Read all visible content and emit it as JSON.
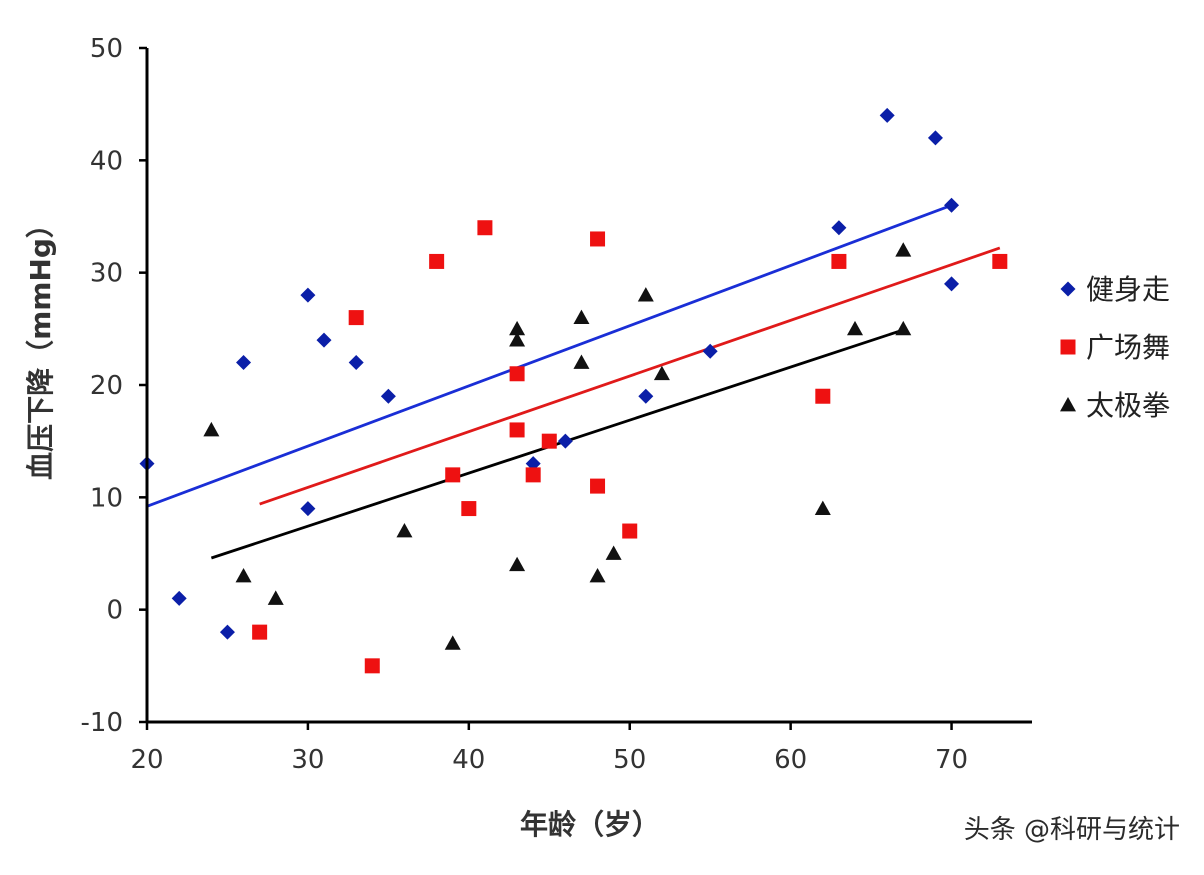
{
  "chart_data": {
    "type": "scatter",
    "xlabel": "年龄（岁）",
    "ylabel": "血压下降（mmHg）",
    "xlim": [
      20,
      75
    ],
    "ylim": [
      -10,
      50
    ],
    "x_ticks": [
      20,
      30,
      40,
      50,
      60,
      70
    ],
    "y_ticks": [
      -10,
      0,
      10,
      20,
      30,
      40,
      50
    ],
    "grid": false,
    "legend_position": "right",
    "series": [
      {
        "name": "健身走",
        "marker": "diamond",
        "color": "#0b1fa8",
        "points": [
          [
            20,
            13
          ],
          [
            22,
            1
          ],
          [
            25,
            -2
          ],
          [
            26,
            22
          ],
          [
            30,
            28
          ],
          [
            30,
            9
          ],
          [
            31,
            24
          ],
          [
            33,
            22
          ],
          [
            35,
            19
          ],
          [
            44,
            13
          ],
          [
            46,
            15
          ],
          [
            51,
            19
          ],
          [
            55,
            23
          ],
          [
            63,
            34
          ],
          [
            66,
            44
          ],
          [
            69,
            42
          ],
          [
            70,
            36
          ],
          [
            70,
            29
          ]
        ],
        "trend": {
          "x": [
            20,
            70
          ],
          "y": [
            9.2,
            36.0
          ]
        },
        "trend_color": "#1a2ed6"
      },
      {
        "name": "广场舞",
        "marker": "square",
        "color": "#ee1111",
        "points": [
          [
            27,
            -2
          ],
          [
            33,
            26
          ],
          [
            34,
            -5
          ],
          [
            38,
            31
          ],
          [
            39,
            12
          ],
          [
            40,
            9
          ],
          [
            41,
            34
          ],
          [
            43,
            21
          ],
          [
            43,
            16
          ],
          [
            44,
            12
          ],
          [
            45,
            15
          ],
          [
            48,
            33
          ],
          [
            48,
            11
          ],
          [
            50,
            7
          ],
          [
            62,
            19
          ],
          [
            63,
            31
          ],
          [
            73,
            31
          ]
        ],
        "trend": {
          "x": [
            27,
            73
          ],
          "y": [
            9.4,
            32.2
          ]
        },
        "trend_color": "#e01a1a"
      },
      {
        "name": "太极拳",
        "marker": "triangle",
        "color": "#111111",
        "points": [
          [
            24,
            16
          ],
          [
            26,
            3
          ],
          [
            28,
            1
          ],
          [
            36,
            7
          ],
          [
            39,
            -3
          ],
          [
            43,
            25
          ],
          [
            43,
            24
          ],
          [
            43,
            4
          ],
          [
            47,
            26
          ],
          [
            47,
            22
          ],
          [
            48,
            3
          ],
          [
            49,
            5
          ],
          [
            51,
            28
          ],
          [
            52,
            21
          ],
          [
            62,
            9
          ],
          [
            64,
            25
          ],
          [
            67,
            32
          ],
          [
            67,
            25
          ]
        ],
        "trend": {
          "x": [
            24,
            67
          ],
          "y": [
            4.6,
            24.9
          ]
        },
        "trend_color": "#000000"
      }
    ]
  },
  "watermark": "头条 @科研与统计"
}
